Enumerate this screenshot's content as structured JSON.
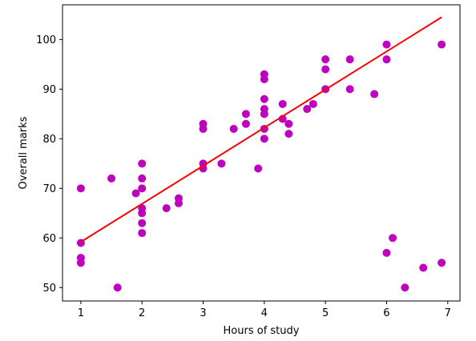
{
  "chart_data": {
    "type": "scatter",
    "title": "",
    "xlabel": "Hours of study",
    "ylabel": "Overall marks",
    "xlim": [
      0.7,
      7.2
    ],
    "ylim": [
      47.3,
      107.0
    ],
    "xticks": [
      1,
      2,
      3,
      4,
      5,
      6,
      7
    ],
    "yticks": [
      50,
      60,
      70,
      80,
      90,
      100
    ],
    "grid": false,
    "colors": {
      "points": "#bf00bf",
      "line": "#ff0000"
    },
    "points": [
      [
        1,
        70
      ],
      [
        1,
        59
      ],
      [
        1,
        56
      ],
      [
        1,
        55
      ],
      [
        1.5,
        72
      ],
      [
        1.6,
        50
      ],
      [
        1.9,
        69
      ],
      [
        2,
        75
      ],
      [
        2,
        72
      ],
      [
        2,
        70
      ],
      [
        2,
        66
      ],
      [
        2,
        65
      ],
      [
        2,
        63
      ],
      [
        2,
        61
      ],
      [
        2.4,
        66
      ],
      [
        2.6,
        68
      ],
      [
        2.6,
        67
      ],
      [
        3,
        83
      ],
      [
        3,
        82
      ],
      [
        3,
        75
      ],
      [
        3,
        74
      ],
      [
        3.3,
        75
      ],
      [
        3.5,
        82
      ],
      [
        3.7,
        85
      ],
      [
        3.7,
        83
      ],
      [
        3.9,
        74
      ],
      [
        4,
        93
      ],
      [
        4,
        92
      ],
      [
        4,
        88
      ],
      [
        4,
        86
      ],
      [
        4,
        85
      ],
      [
        4,
        82
      ],
      [
        4,
        80
      ],
      [
        4.3,
        87
      ],
      [
        4.3,
        84
      ],
      [
        4.4,
        83
      ],
      [
        4.4,
        81
      ],
      [
        4.7,
        86
      ],
      [
        4.8,
        87
      ],
      [
        5,
        96
      ],
      [
        5,
        94
      ],
      [
        5,
        90
      ],
      [
        5.4,
        96
      ],
      [
        5.4,
        90
      ],
      [
        5.8,
        89
      ],
      [
        6,
        99
      ],
      [
        6,
        96
      ],
      [
        6,
        57
      ],
      [
        6.1,
        60
      ],
      [
        6.3,
        50
      ],
      [
        6.6,
        54
      ],
      [
        6.9,
        99
      ],
      [
        6.9,
        55
      ]
    ],
    "fit_line": {
      "x": [
        1,
        6.9
      ],
      "y": [
        59.2,
        104.5
      ]
    }
  }
}
